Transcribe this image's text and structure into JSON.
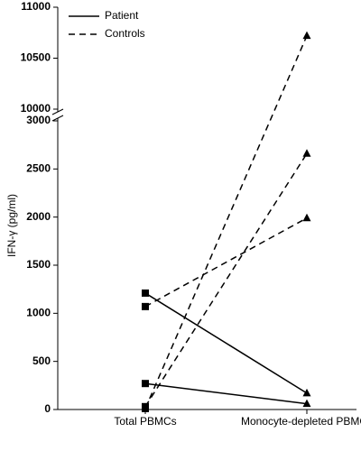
{
  "chart_data": {
    "type": "line",
    "ylabel": "IFN-γ (pg/ml)",
    "categories": [
      "Total PBMCs",
      "Monocyte-depleted PBMCs"
    ],
    "series": [
      {
        "name": "Patient",
        "color": "#000000",
        "style": "solid",
        "lines": [
          [
            1210,
            170
          ],
          [
            270,
            60
          ]
        ]
      },
      {
        "name": "Controls",
        "color": "#000000",
        "style": "dashed",
        "lines": [
          [
            1070,
            1990
          ],
          [
            30,
            2660
          ],
          [
            10,
            10720
          ]
        ]
      }
    ],
    "ylim": [
      0,
      3000
    ],
    "yticks": [
      0,
      500,
      1000,
      1500,
      2000,
      2500,
      3000
    ],
    "ylim_upper": [
      10000,
      11000
    ],
    "yticks_upper": [
      10000,
      10500,
      11000
    ],
    "legend": "upper left"
  }
}
